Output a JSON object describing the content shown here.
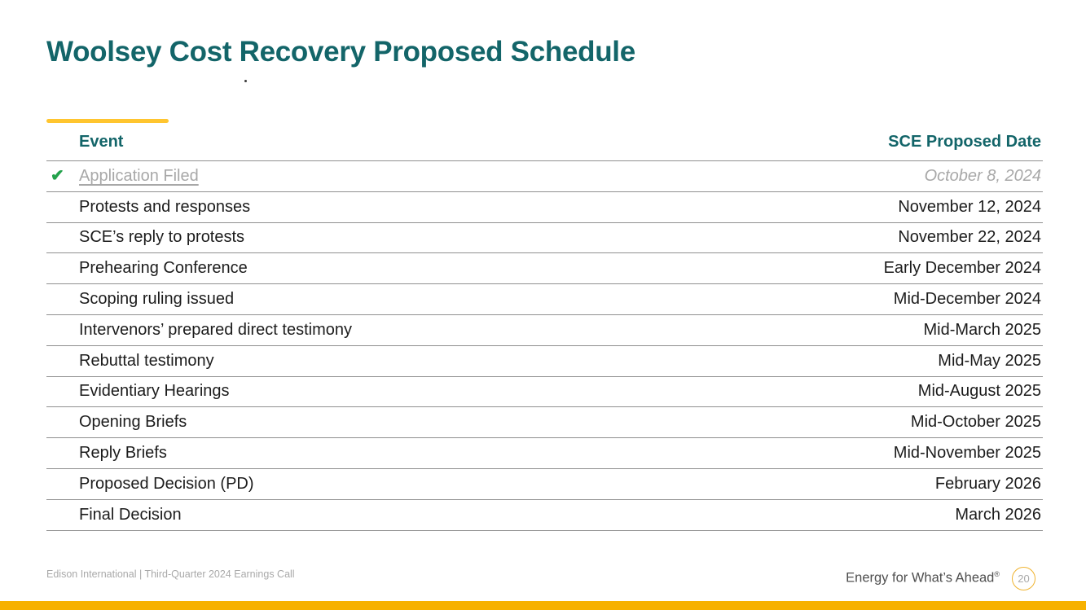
{
  "slide": {
    "title": "Woolsey Cost Recovery Proposed Schedule",
    "footer_left": "Edison International | Third-Quarter 2024 Earnings Call",
    "tagline": "Energy for What’s Ahead",
    "tagline_reg": "®",
    "page_number": "20"
  },
  "table": {
    "checkmark": "✔",
    "headers": {
      "event": "Event",
      "date": "SCE Proposed Date"
    },
    "rows": [
      {
        "event": "Application Filed",
        "date": "October 8, 2024",
        "completed": true
      },
      {
        "event": "Protests and responses",
        "date": "November 12, 2024"
      },
      {
        "event": "SCE’s reply to protests",
        "date": "November 22, 2024"
      },
      {
        "event": "Prehearing Conference",
        "date": "Early December 2024"
      },
      {
        "event": "Scoping ruling issued",
        "date": "Mid-December 2024"
      },
      {
        "event": "Intervenors’ prepared direct testimony",
        "date": "Mid-March 2025"
      },
      {
        "event": "Rebuttal testimony",
        "date": "Mid-May 2025"
      },
      {
        "event": "Evidentiary Hearings",
        "date": "Mid-August 2025"
      },
      {
        "event": "Opening Briefs",
        "date": "Mid-October 2025"
      },
      {
        "event": "Reply Briefs",
        "date": "Mid-November 2025"
      },
      {
        "event": "Proposed Decision (PD)",
        "date": "February 2026"
      },
      {
        "event": "Final Decision",
        "date": "March 2026"
      }
    ]
  },
  "colors": {
    "teal": "#136569",
    "gold_accent": "#FFC52F",
    "gold_bar": "#F7B100",
    "check_green": "#23a24c",
    "completed_gray": "#a8a8a8"
  }
}
